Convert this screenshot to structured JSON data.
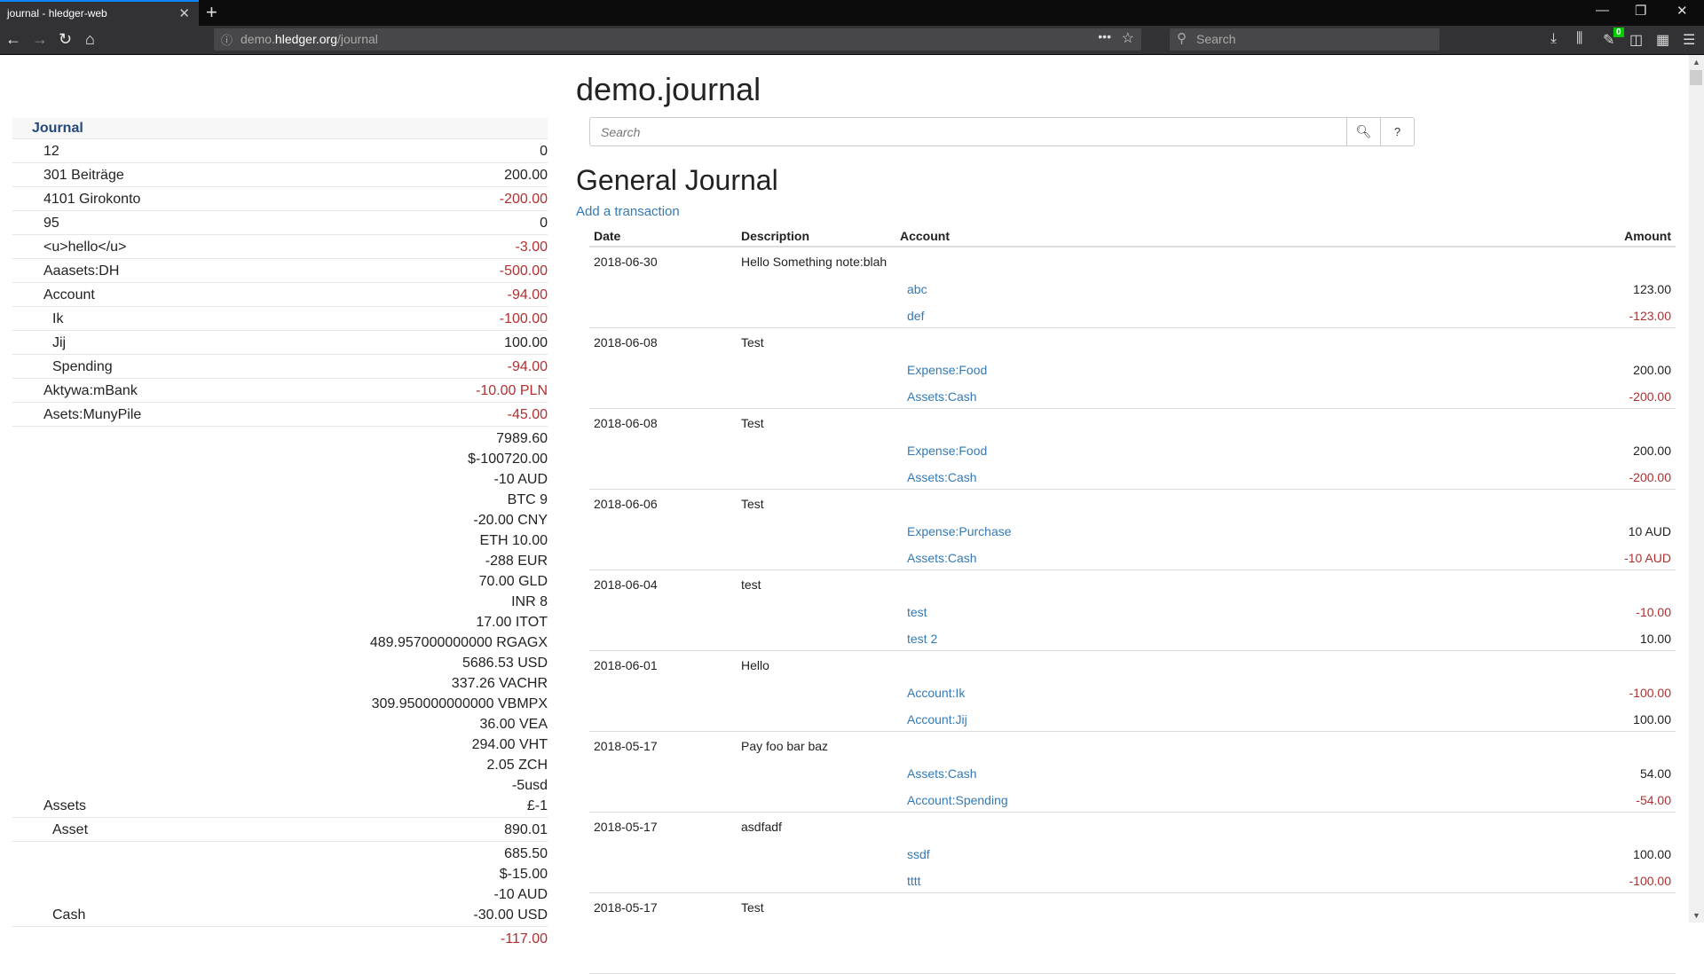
{
  "browser": {
    "tab_title": "journal - hledger-web",
    "url_prefix": "demo.",
    "url_domain": "hledger.org",
    "url_path": "/journal",
    "search_placeholder": "Search",
    "badge": "0"
  },
  "sidebar": {
    "header": "Journal",
    "rows": [
      {
        "label": "12",
        "level": 1,
        "amounts": [
          "0"
        ],
        "negative": false
      },
      {
        "label": "301 Beiträge",
        "level": 1,
        "amounts": [
          "200.00"
        ],
        "negative": false
      },
      {
        "label": "4101 Girokonto",
        "level": 1,
        "amounts": [
          "-200.00"
        ],
        "negative": true
      },
      {
        "label": "95",
        "level": 1,
        "amounts": [
          "0"
        ],
        "negative": false
      },
      {
        "label": "<u>hello</u>",
        "level": 1,
        "amounts": [
          "-3.00"
        ],
        "negative": true
      },
      {
        "label": "Aaasets:DH",
        "level": 1,
        "amounts": [
          "-500.00"
        ],
        "negative": true
      },
      {
        "label": "Account",
        "level": 1,
        "amounts": [
          "-94.00"
        ],
        "negative": true
      },
      {
        "label": "Ik",
        "level": 2,
        "amounts": [
          "-100.00"
        ],
        "negative": true
      },
      {
        "label": "Jij",
        "level": 2,
        "amounts": [
          "100.00"
        ],
        "negative": false
      },
      {
        "label": "Spending",
        "level": 2,
        "amounts": [
          "-94.00"
        ],
        "negative": true
      },
      {
        "label": "Aktywa:mBank",
        "level": 1,
        "amounts": [
          "-10.00 PLN"
        ],
        "negative": true
      },
      {
        "label": "Asets:MunyPile",
        "level": 1,
        "amounts": [
          "-45.00"
        ],
        "negative": true
      },
      {
        "label": "Assets",
        "level": 1,
        "amounts": [
          "7989.60",
          "$-100720.00",
          "-10 AUD",
          "BTC 9",
          "-20.00 CNY",
          "ETH 10.00",
          "-288 EUR",
          "70.00 GLD",
          "INR 8",
          "17.00 ITOT",
          "489.957000000000 RGAGX",
          "5686.53 USD",
          "337.26 VACHR",
          "309.950000000000 VBMPX",
          "36.00 VEA",
          "294.00 VHT",
          "2.05 ZCH",
          "-5usd",
          "£-1"
        ],
        "negative": false
      },
      {
        "label": "Asset",
        "level": 2,
        "amounts": [
          "890.01"
        ],
        "negative": false
      },
      {
        "label": "Cash",
        "level": 2,
        "amounts": [
          "685.50",
          "$-15.00",
          "-10 AUD",
          "-30.00 USD"
        ],
        "negative": false
      },
      {
        "label": "",
        "level": 2,
        "amounts": [
          "-117.00"
        ],
        "negative": true
      }
    ]
  },
  "main": {
    "title": "demo.journal",
    "search_placeholder": "Search",
    "help_label": "?",
    "heading": "General Journal",
    "add_link": "Add a transaction",
    "columns": {
      "date": "Date",
      "description": "Description",
      "account": "Account",
      "amount": "Amount"
    },
    "transactions": [
      {
        "date": "2018-06-30",
        "description": "Hello Something note:blah",
        "postings": [
          {
            "account": "abc",
            "amount": "123.00"
          },
          {
            "account": "def",
            "amount": "-123.00"
          }
        ]
      },
      {
        "date": "2018-06-08",
        "description": "Test",
        "postings": [
          {
            "account": "Expense:Food",
            "amount": "200.00"
          },
          {
            "account": "Assets:Cash",
            "amount": "-200.00"
          }
        ]
      },
      {
        "date": "2018-06-08",
        "description": "Test",
        "postings": [
          {
            "account": "Expense:Food",
            "amount": "200.00"
          },
          {
            "account": "Assets:Cash",
            "amount": "-200.00"
          }
        ]
      },
      {
        "date": "2018-06-06",
        "description": "Test",
        "postings": [
          {
            "account": "Expense:Purchase",
            "amount": "10 AUD"
          },
          {
            "account": "Assets:Cash",
            "amount": "-10 AUD"
          }
        ]
      },
      {
        "date": "2018-06-04",
        "description": "test",
        "postings": [
          {
            "account": "test",
            "amount": "-10.00"
          },
          {
            "account": "test 2",
            "amount": "10.00"
          }
        ]
      },
      {
        "date": "2018-06-01",
        "description": "Hello",
        "postings": [
          {
            "account": "Account:Ik",
            "amount": "-100.00"
          },
          {
            "account": "Account:Jij",
            "amount": "100.00"
          }
        ]
      },
      {
        "date": "2018-05-17",
        "description": "Pay foo bar baz",
        "postings": [
          {
            "account": "Assets:Cash",
            "amount": "54.00"
          },
          {
            "account": "Account:Spending",
            "amount": "-54.00"
          }
        ]
      },
      {
        "date": "2018-05-17",
        "description": "asdfadf",
        "postings": [
          {
            "account": "ssdf",
            "amount": "100.00"
          },
          {
            "account": "tttt",
            "amount": "-100.00"
          }
        ]
      },
      {
        "date": "2018-05-17",
        "description": "Test",
        "postings": []
      }
    ]
  },
  "colors": {
    "link": "#337ab7",
    "negative": "#b03030",
    "header": "#24497c"
  }
}
